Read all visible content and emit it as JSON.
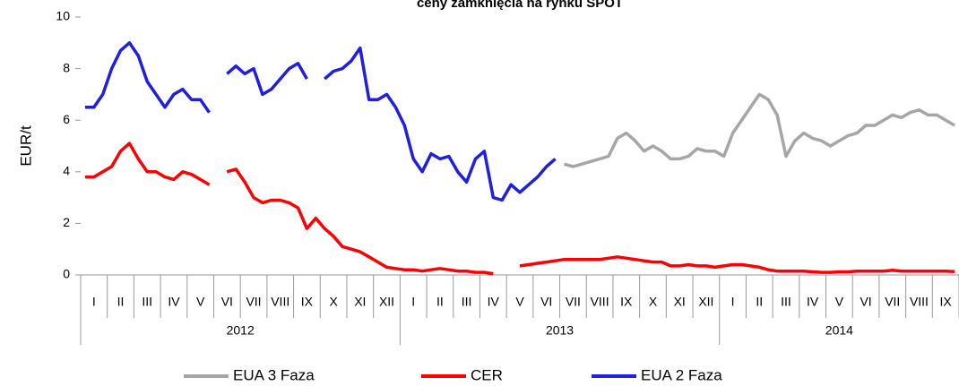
{
  "chart_data": {
    "type": "line",
    "title": "ceny zamknięcia  na rynku SPOT",
    "y_label": "EUR/t",
    "categories": [
      null,
      "I",
      null,
      null,
      "II",
      null,
      null,
      "III",
      null,
      null,
      "IV",
      null,
      null,
      "V",
      null,
      null,
      "VI",
      null,
      null,
      "VII",
      null,
      null,
      "VIII",
      null,
      null,
      "IX",
      null,
      null,
      "X",
      null,
      null,
      "XI",
      null,
      null,
      "XII",
      null,
      null,
      "I",
      null,
      null,
      "II",
      null,
      null,
      "III",
      null,
      null,
      "IV",
      null,
      null,
      "V",
      null,
      null,
      "VI",
      null,
      null,
      "VII",
      null,
      null,
      "VIII",
      null,
      null,
      "IX",
      null,
      null,
      "X",
      null,
      null,
      "XI",
      null,
      null,
      "XII",
      null,
      null,
      "I",
      null,
      null,
      "II",
      null,
      null,
      "III",
      null,
      null,
      "IV",
      null,
      null,
      "V",
      null,
      null,
      "VI",
      null,
      null,
      "VII",
      null,
      null,
      "VIII",
      null,
      null,
      "IX",
      null
    ],
    "years": [
      "2012",
      "2013",
      "2014"
    ],
    "ylim": [
      0,
      10
    ],
    "yticks": [
      0,
      2,
      4,
      6,
      8,
      10
    ],
    "series": [
      {
        "name": "EUA 3 Faza",
        "color": "#a6a6a6",
        "values": [
          null,
          null,
          null,
          null,
          null,
          null,
          null,
          null,
          null,
          null,
          null,
          null,
          null,
          null,
          null,
          null,
          null,
          null,
          null,
          null,
          null,
          null,
          null,
          null,
          null,
          null,
          null,
          null,
          null,
          null,
          null,
          null,
          null,
          null,
          null,
          null,
          null,
          null,
          null,
          null,
          null,
          null,
          null,
          null,
          null,
          null,
          null,
          null,
          null,
          null,
          null,
          null,
          null,
          null,
          4.3,
          4.2,
          4.3,
          4.4,
          4.5,
          4.6,
          5.3,
          5.5,
          5.2,
          4.8,
          5.0,
          4.8,
          4.5,
          4.5,
          4.6,
          4.9,
          4.8,
          4.8,
          4.6,
          5.5,
          6.0,
          6.5,
          7.0,
          6.8,
          6.2,
          4.6,
          5.2,
          5.5,
          5.3,
          5.2,
          5.0,
          5.2,
          5.4,
          5.5,
          5.8,
          5.8,
          6.0,
          6.2,
          6.1,
          6.3,
          6.4,
          6.2,
          6.2,
          6.0,
          5.8
        ]
      },
      {
        "name": "CER",
        "color": "#ff0000",
        "values": [
          3.8,
          3.8,
          4.0,
          4.2,
          4.8,
          5.1,
          4.5,
          4.0,
          4.0,
          3.8,
          3.7,
          4.0,
          3.9,
          3.7,
          3.5,
          null,
          4.0,
          4.1,
          3.6,
          3.0,
          2.8,
          2.9,
          2.9,
          2.8,
          2.6,
          1.8,
          2.2,
          1.8,
          1.5,
          1.1,
          1.0,
          0.9,
          0.7,
          0.5,
          0.3,
          0.25,
          0.2,
          0.2,
          0.15,
          0.2,
          0.25,
          0.2,
          0.15,
          0.15,
          0.1,
          0.1,
          0.05,
          null,
          null,
          0.35,
          0.4,
          0.45,
          0.5,
          0.55,
          0.6,
          0.6,
          0.6,
          0.6,
          0.6,
          0.65,
          0.7,
          0.65,
          0.6,
          0.55,
          0.5,
          0.5,
          0.35,
          0.35,
          0.4,
          0.35,
          0.35,
          0.3,
          0.35,
          0.4,
          0.4,
          0.35,
          0.3,
          0.2,
          0.15,
          0.15,
          0.15,
          0.15,
          0.12,
          0.1,
          0.1,
          0.12,
          0.12,
          0.15,
          0.15,
          0.15,
          0.15,
          0.18,
          0.15,
          0.15,
          0.15,
          0.15,
          0.15,
          0.15,
          0.13
        ]
      },
      {
        "name": "EUA 2 Faza",
        "color": "#1f1fdf",
        "values": [
          6.5,
          6.5,
          7.0,
          8.0,
          8.7,
          9.0,
          8.5,
          7.5,
          7.0,
          6.5,
          7.0,
          7.2,
          6.8,
          6.8,
          6.3,
          null,
          7.8,
          8.1,
          7.8,
          8.0,
          7.0,
          7.2,
          7.6,
          8.0,
          8.2,
          7.6,
          null,
          7.6,
          7.9,
          8.0,
          8.3,
          8.8,
          6.8,
          6.8,
          7.0,
          6.5,
          5.8,
          4.5,
          4.0,
          4.7,
          4.5,
          4.6,
          4.0,
          3.6,
          4.5,
          4.8,
          3.0,
          2.9,
          3.5,
          3.2,
          3.5,
          3.8,
          4.2,
          4.5,
          null,
          null,
          null,
          null,
          null,
          null,
          null,
          null,
          null,
          null,
          null,
          null,
          null,
          null,
          null,
          null,
          null,
          null,
          null,
          null,
          null,
          null,
          null,
          null,
          null,
          null,
          null,
          null,
          null,
          null,
          null,
          null,
          null,
          null,
          null,
          null,
          null,
          null,
          null,
          null,
          null,
          null,
          null,
          null,
          null
        ]
      }
    ],
    "legend": "bottom"
  }
}
